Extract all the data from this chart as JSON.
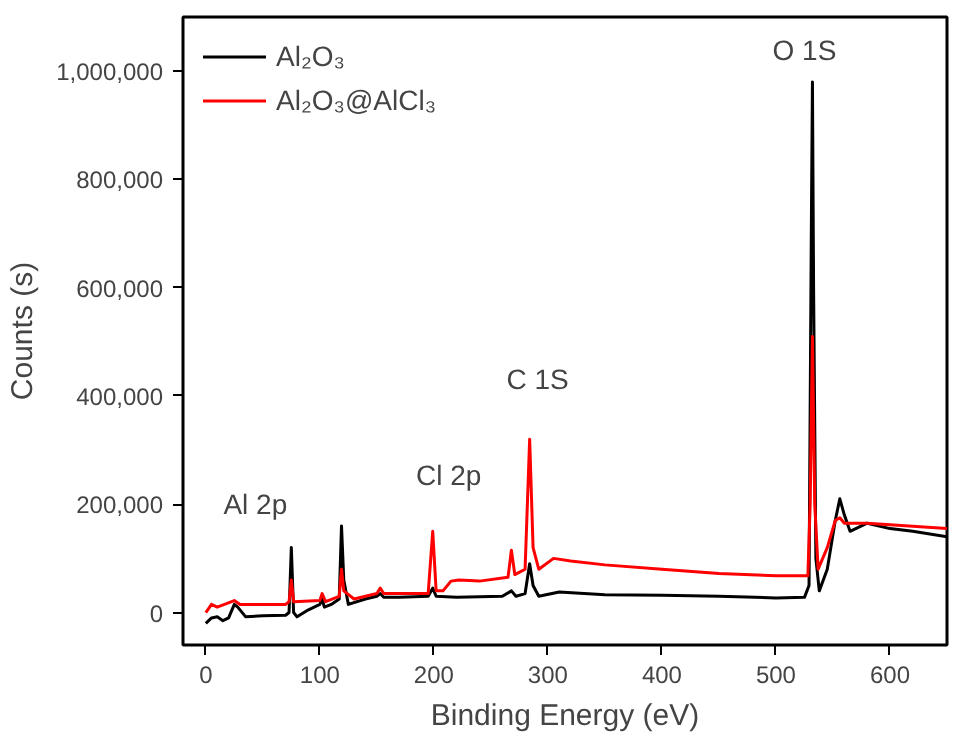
{
  "chart_data": {
    "type": "line",
    "xlabel": "Binding Energy (eV)",
    "ylabel": "Counts (s)",
    "xlim": [
      -20,
      650
    ],
    "ylim": [
      -60000,
      1100000
    ],
    "xticks": [
      0,
      100,
      200,
      300,
      400,
      500,
      600
    ],
    "yticks": [
      0,
      {
        "value": 200000,
        "label": "200,000"
      },
      {
        "value": 400000,
        "label": "400,000"
      },
      {
        "value": 600000,
        "label": "600,000"
      },
      {
        "value": 800000,
        "label": "800,000"
      },
      {
        "value": 1000000,
        "label": "1,000,000"
      }
    ],
    "grid": false,
    "legend": "top left",
    "line_style": "solid",
    "marker": "none",
    "series": [
      {
        "name": "Al₂O₃",
        "color": "#000000",
        "x": [
          0,
          5,
          10,
          15,
          20,
          25,
          28,
          35,
          50,
          70,
          73,
          75,
          77,
          80,
          90,
          100,
          102,
          104,
          110,
          117,
          119,
          121,
          125,
          140,
          150,
          153,
          156,
          170,
          195,
          199,
          202,
          220,
          260,
          268,
          272,
          280,
          284,
          287,
          292,
          310,
          350,
          400,
          450,
          500,
          525,
          529,
          531,
          532,
          533,
          535,
          538,
          545,
          552,
          556,
          560,
          565,
          580,
          600,
          620,
          650
        ],
        "values": [
          -20000,
          -10000,
          -8000,
          -15000,
          -10000,
          15000,
          10000,
          -8000,
          -6000,
          -5000,
          0,
          120000,
          0,
          -8000,
          5000,
          15000,
          25000,
          10000,
          15000,
          25000,
          160000,
          60000,
          15000,
          25000,
          30000,
          35000,
          28000,
          28000,
          30000,
          45000,
          30000,
          28000,
          30000,
          40000,
          30000,
          35000,
          90000,
          50000,
          30000,
          38000,
          33000,
          32000,
          30000,
          27000,
          28000,
          50000,
          700000,
          980000,
          600000,
          100000,
          40000,
          80000,
          170000,
          210000,
          180000,
          150000,
          165000,
          155000,
          150000,
          140000
        ]
      },
      {
        "name": "Al₂O₃@AlCl₃",
        "color": "#ff0000",
        "x": [
          0,
          5,
          10,
          25,
          30,
          50,
          70,
          73,
          75,
          77,
          100,
          102,
          105,
          117,
          119,
          121,
          130,
          150,
          153,
          156,
          195,
          199,
          202,
          208,
          215,
          222,
          240,
          265,
          268,
          271,
          280,
          284,
          287,
          292,
          305,
          320,
          350,
          400,
          450,
          500,
          528,
          530,
          532,
          534,
          537,
          545,
          552,
          556,
          560,
          580,
          600,
          650
        ],
        "values": [
          0,
          15000,
          10000,
          22000,
          15000,
          15000,
          15000,
          20000,
          60000,
          20000,
          22000,
          35000,
          20000,
          30000,
          80000,
          40000,
          25000,
          35000,
          45000,
          35000,
          35000,
          150000,
          40000,
          40000,
          58000,
          60000,
          58000,
          65000,
          115000,
          70000,
          80000,
          320000,
          120000,
          80000,
          100000,
          95000,
          88000,
          80000,
          72000,
          68000,
          68000,
          200000,
          510000,
          200000,
          80000,
          120000,
          170000,
          175000,
          165000,
          165000,
          162000,
          155000
        ]
      }
    ],
    "annotations": [
      {
        "text": "Al 2p",
        "x": 75,
        "y": 120000
      },
      {
        "text": "Cl 2p",
        "x": 199,
        "y": 150000
      },
      {
        "text": "C 1S",
        "x": 284,
        "y": 320000
      },
      {
        "text": "O 1S",
        "x": 532,
        "y": 980000
      }
    ]
  }
}
